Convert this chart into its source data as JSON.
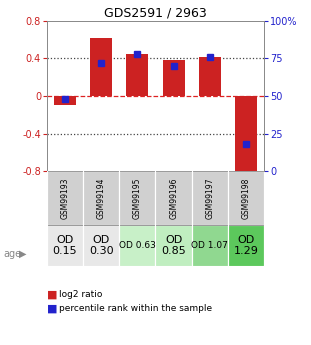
{
  "title": "GDS2591 / 2963",
  "samples": [
    "GSM99193",
    "GSM99194",
    "GSM99195",
    "GSM99196",
    "GSM99197",
    "GSM99198"
  ],
  "log2_ratio": [
    -0.1,
    0.62,
    0.45,
    0.38,
    0.42,
    -0.88
  ],
  "percentile_rank": [
    48,
    72,
    78,
    70,
    76,
    18
  ],
  "bar_color": "#cc2222",
  "dot_color": "#2222cc",
  "ylim": [
    -0.8,
    0.8
  ],
  "y2lim": [
    0,
    100
  ],
  "yticks": [
    -0.8,
    -0.4,
    0,
    0.4,
    0.8
  ],
  "y2ticks": [
    0,
    25,
    50,
    75,
    100
  ],
  "y2ticklabels": [
    "0",
    "25",
    "50",
    "75",
    "100%"
  ],
  "hline_color_zero": "#dd2222",
  "hline_color_dotted": "#444444",
  "age_labels": [
    "OD\n0.15",
    "OD\n0.30",
    "OD 0.63",
    "OD\n0.85",
    "OD 1.07",
    "OD\n1.29"
  ],
  "age_label_fontsize": [
    8,
    8,
    6.5,
    8,
    6.5,
    8
  ],
  "age_colors": [
    "#e8e8e8",
    "#e8e8e8",
    "#c8f0c8",
    "#c0eec0",
    "#90d890",
    "#5cc85c"
  ],
  "sample_bg_color": "#d0d0d0",
  "legend_log2": "log2 ratio",
  "legend_pct": "percentile rank within the sample"
}
